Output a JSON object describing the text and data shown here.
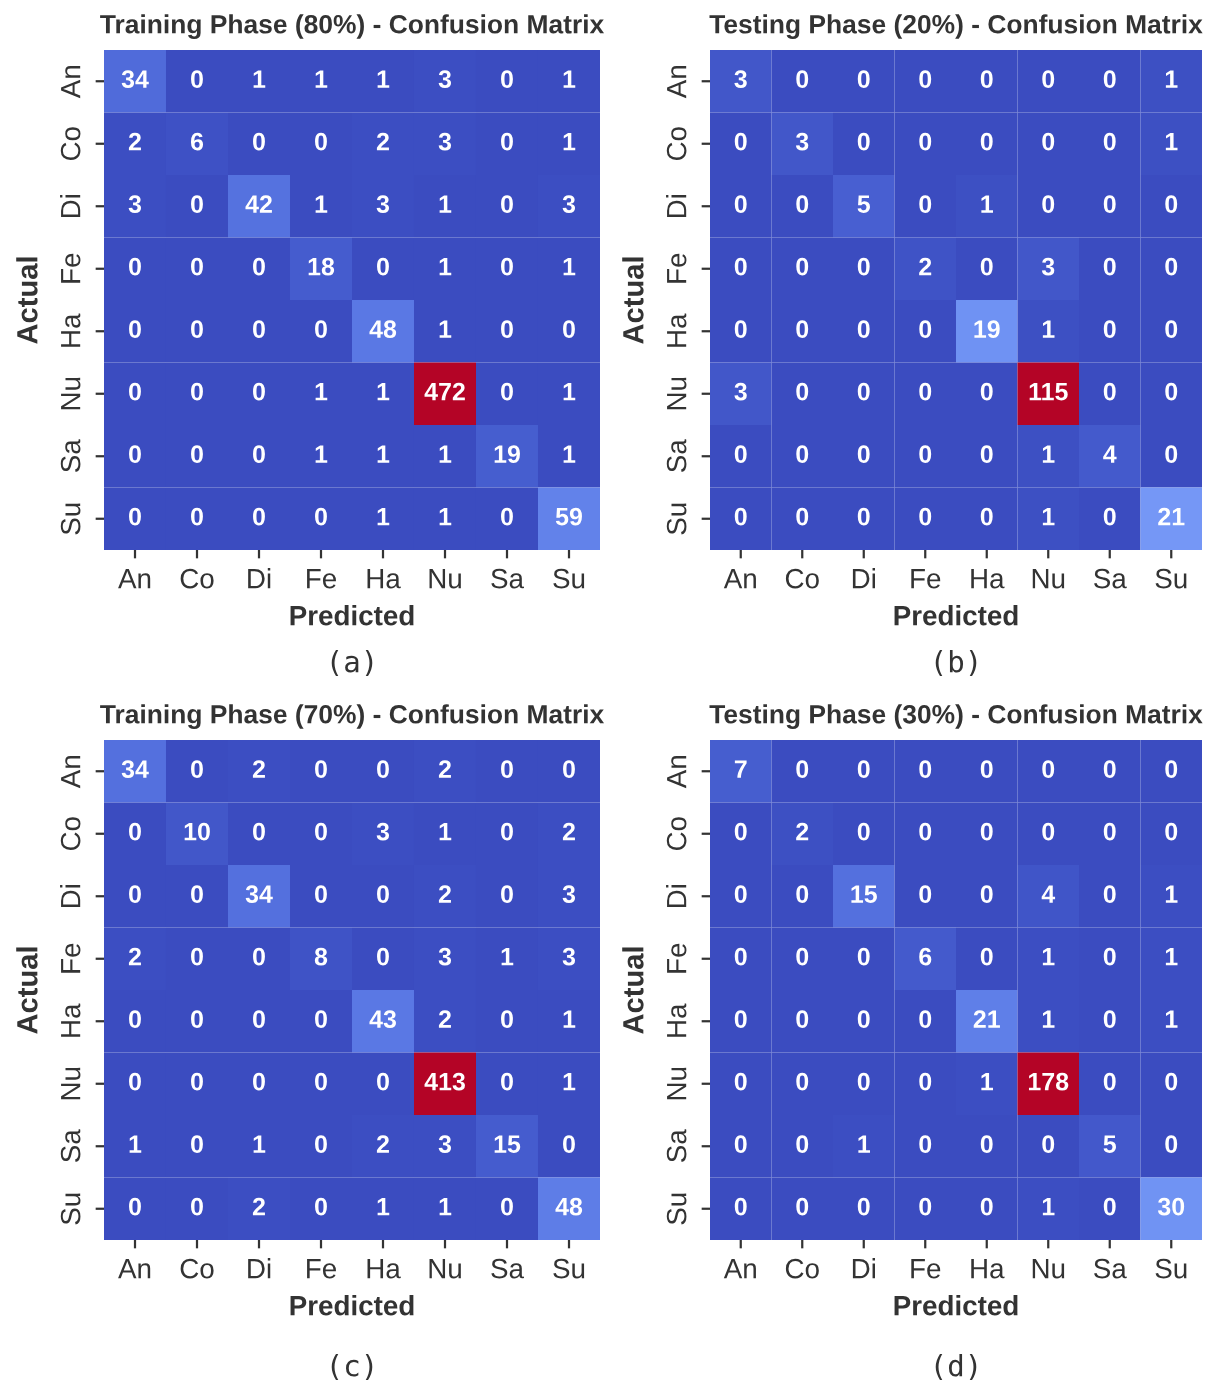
{
  "chart_data": [
    {
      "type": "heatmap",
      "title": "Training Phase (80%) - Confusion Matrix",
      "xlabel": "Predicted",
      "ylabel": "Actual",
      "annotations": [
        "(a)"
      ],
      "data_labels": true,
      "categories": [
        "An",
        "Co",
        "Di",
        "Fe",
        "Ha",
        "Nu",
        "Sa",
        "Su"
      ],
      "y_categories": [
        "An",
        "Co",
        "Di",
        "Fe",
        "Ha",
        "Nu",
        "Sa",
        "Su"
      ],
      "cells": [
        [
          34,
          0,
          1,
          1,
          1,
          3,
          0,
          1
        ],
        [
          2,
          6,
          0,
          0,
          2,
          3,
          0,
          1
        ],
        [
          3,
          0,
          42,
          1,
          3,
          1,
          0,
          3
        ],
        [
          0,
          0,
          0,
          18,
          0,
          1,
          0,
          1
        ],
        [
          0,
          0,
          0,
          0,
          48,
          1,
          0,
          0
        ],
        [
          0,
          0,
          0,
          1,
          1,
          472,
          0,
          1
        ],
        [
          0,
          0,
          0,
          1,
          1,
          1,
          19,
          1
        ],
        [
          0,
          0,
          0,
          0,
          1,
          1,
          0,
          59
        ]
      ]
    },
    {
      "type": "heatmap",
      "title": "Testing Phase (20%) - Confusion Matrix",
      "xlabel": "Predicted",
      "ylabel": "Actual",
      "annotations": [
        "(b)"
      ],
      "data_labels": true,
      "categories": [
        "An",
        "Co",
        "Di",
        "Fe",
        "Ha",
        "Nu",
        "Sa",
        "Su"
      ],
      "y_categories": [
        "An",
        "Co",
        "Di",
        "Fe",
        "Ha",
        "Nu",
        "Sa",
        "Su"
      ],
      "cells": [
        [
          3,
          0,
          0,
          0,
          0,
          0,
          0,
          1
        ],
        [
          0,
          3,
          0,
          0,
          0,
          0,
          0,
          1
        ],
        [
          0,
          0,
          5,
          0,
          1,
          0,
          0,
          0
        ],
        [
          0,
          0,
          0,
          2,
          0,
          3,
          0,
          0
        ],
        [
          0,
          0,
          0,
          0,
          19,
          1,
          0,
          0
        ],
        [
          3,
          0,
          0,
          0,
          0,
          115,
          0,
          0
        ],
        [
          0,
          0,
          0,
          0,
          0,
          1,
          4,
          0
        ],
        [
          0,
          0,
          0,
          0,
          0,
          1,
          0,
          21
        ]
      ]
    },
    {
      "type": "heatmap",
      "title": "Training Phase (70%) - Confusion Matrix",
      "xlabel": "Predicted",
      "ylabel": "Actual",
      "annotations": [
        "(c)"
      ],
      "data_labels": true,
      "categories": [
        "An",
        "Co",
        "Di",
        "Fe",
        "Ha",
        "Nu",
        "Sa",
        "Su"
      ],
      "y_categories": [
        "An",
        "Co",
        "Di",
        "Fe",
        "Ha",
        "Nu",
        "Sa",
        "Su"
      ],
      "cells": [
        [
          34,
          0,
          2,
          0,
          0,
          2,
          0,
          0
        ],
        [
          0,
          10,
          0,
          0,
          3,
          1,
          0,
          2
        ],
        [
          0,
          0,
          34,
          0,
          0,
          2,
          0,
          3
        ],
        [
          2,
          0,
          0,
          8,
          0,
          3,
          1,
          3
        ],
        [
          0,
          0,
          0,
          0,
          43,
          2,
          0,
          1
        ],
        [
          0,
          0,
          0,
          0,
          0,
          413,
          0,
          1
        ],
        [
          1,
          0,
          1,
          0,
          2,
          3,
          15,
          0
        ],
        [
          0,
          0,
          2,
          0,
          1,
          1,
          0,
          48
        ]
      ]
    },
    {
      "type": "heatmap",
      "title": "Testing Phase (30%) - Confusion Matrix",
      "xlabel": "Predicted",
      "ylabel": "Actual",
      "annotations": [
        "(d)"
      ],
      "data_labels": true,
      "categories": [
        "An",
        "Co",
        "Di",
        "Fe",
        "Ha",
        "Nu",
        "Sa",
        "Su"
      ],
      "y_categories": [
        "An",
        "Co",
        "Di",
        "Fe",
        "Ha",
        "Nu",
        "Sa",
        "Su"
      ],
      "cells": [
        [
          7,
          0,
          0,
          0,
          0,
          0,
          0,
          0
        ],
        [
          0,
          2,
          0,
          0,
          0,
          0,
          0,
          0
        ],
        [
          0,
          0,
          15,
          0,
          0,
          4,
          0,
          1
        ],
        [
          0,
          0,
          0,
          6,
          0,
          1,
          0,
          1
        ],
        [
          0,
          0,
          0,
          0,
          21,
          1,
          0,
          1
        ],
        [
          0,
          0,
          0,
          0,
          1,
          178,
          0,
          0
        ],
        [
          0,
          0,
          1,
          0,
          0,
          0,
          5,
          0
        ],
        [
          0,
          0,
          0,
          0,
          0,
          1,
          0,
          30
        ]
      ]
    }
  ]
}
